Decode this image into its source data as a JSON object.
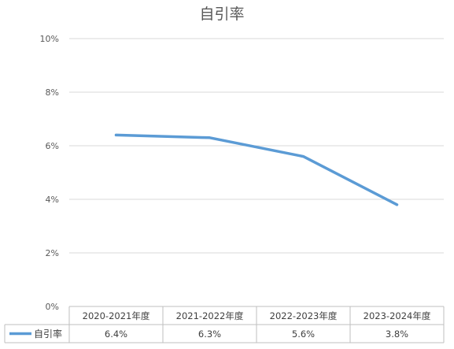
{
  "chart_data": {
    "type": "line",
    "title": "自引率",
    "categories": [
      "2020-2021年度",
      "2021-2022年度",
      "2022-2023年度",
      "2023-2024年度"
    ],
    "series": [
      {
        "name": "自引率",
        "values": [
          6.4,
          6.3,
          5.6,
          3.8
        ],
        "labels": [
          "6.4%",
          "6.3%",
          "5.6%",
          "3.8%"
        ],
        "color": "#5B9BD5"
      }
    ],
    "ylim": [
      0,
      10
    ],
    "yticks": [
      0,
      2,
      4,
      6,
      8,
      10
    ],
    "ytick_labels": [
      "0%",
      "2%",
      "4%",
      "6%",
      "8%",
      "10%"
    ],
    "grid": true,
    "legend": "data-table-bottom",
    "data_table": true
  }
}
